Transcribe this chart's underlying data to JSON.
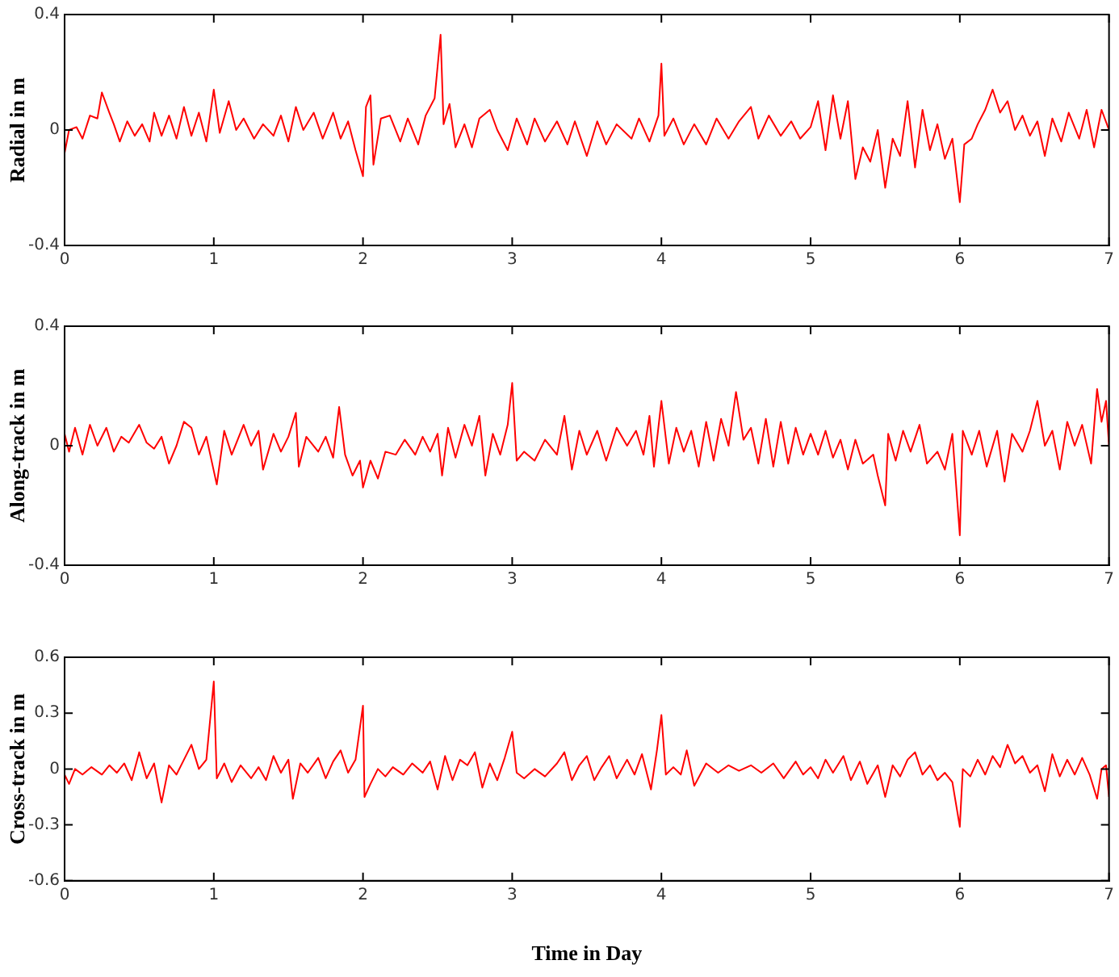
{
  "chart_data": [
    {
      "type": "line",
      "ylabel": "Radial in m",
      "xlim": [
        0,
        7
      ],
      "xticks": [
        0,
        1,
        2,
        3,
        4,
        5,
        6,
        7
      ],
      "ylim": [
        -0.4,
        0.4
      ],
      "yticks": [
        -0.4,
        0,
        0.4
      ],
      "marker": "none",
      "x": [
        0,
        0.03,
        0.08,
        0.12,
        0.17,
        0.22,
        0.25,
        0.3,
        0.33,
        0.37,
        0.42,
        0.47,
        0.52,
        0.57,
        0.6,
        0.65,
        0.7,
        0.75,
        0.8,
        0.85,
        0.9,
        0.95,
        1.0,
        1.04,
        1.1,
        1.15,
        1.2,
        1.27,
        1.33,
        1.4,
        1.45,
        1.5,
        1.55,
        1.6,
        1.67,
        1.73,
        1.8,
        1.85,
        1.9,
        1.95,
        2.0,
        2.02,
        2.05,
        2.07,
        2.12,
        2.18,
        2.25,
        2.3,
        2.37,
        2.42,
        2.48,
        2.52,
        2.54,
        2.58,
        2.62,
        2.68,
        2.73,
        2.78,
        2.85,
        2.9,
        2.97,
        3.03,
        3.1,
        3.15,
        3.22,
        3.3,
        3.37,
        3.42,
        3.5,
        3.57,
        3.63,
        3.7,
        3.8,
        3.85,
        3.92,
        3.98,
        4.0,
        4.02,
        4.08,
        4.15,
        4.22,
        4.3,
        4.37,
        4.45,
        4.52,
        4.6,
        4.65,
        4.72,
        4.8,
        4.87,
        4.93,
        5.0,
        5.05,
        5.1,
        5.15,
        5.2,
        5.25,
        5.3,
        5.35,
        5.4,
        5.45,
        5.5,
        5.55,
        5.6,
        5.65,
        5.7,
        5.75,
        5.8,
        5.85,
        5.9,
        5.95,
        6.0,
        6.03,
        6.08,
        6.12,
        6.17,
        6.22,
        6.27,
        6.32,
        6.37,
        6.42,
        6.47,
        6.52,
        6.57,
        6.62,
        6.68,
        6.73,
        6.8,
        6.85,
        6.9,
        6.95,
        7.0
      ],
      "series": [
        {
          "color": "#ff0000",
          "values": [
            -0.08,
            0.0,
            0.01,
            -0.03,
            0.05,
            0.04,
            0.13,
            0.06,
            0.02,
            -0.04,
            0.03,
            -0.02,
            0.02,
            -0.04,
            0.06,
            -0.02,
            0.05,
            -0.03,
            0.08,
            -0.02,
            0.06,
            -0.04,
            0.14,
            -0.01,
            0.1,
            0.0,
            0.04,
            -0.03,
            0.02,
            -0.02,
            0.05,
            -0.04,
            0.08,
            0.0,
            0.06,
            -0.03,
            0.06,
            -0.03,
            0.03,
            -0.07,
            -0.16,
            0.08,
            0.12,
            -0.12,
            0.04,
            0.05,
            -0.04,
            0.04,
            -0.05,
            0.05,
            0.11,
            0.33,
            0.02,
            0.09,
            -0.06,
            0.02,
            -0.06,
            0.04,
            0.07,
            0.0,
            -0.07,
            0.04,
            -0.05,
            0.04,
            -0.04,
            0.03,
            -0.05,
            0.03,
            -0.09,
            0.03,
            -0.05,
            0.02,
            -0.03,
            0.04,
            -0.04,
            0.05,
            0.23,
            -0.02,
            0.04,
            -0.05,
            0.02,
            -0.05,
            0.04,
            -0.03,
            0.03,
            0.08,
            -0.03,
            0.05,
            -0.02,
            0.03,
            -0.03,
            0.01,
            0.1,
            -0.07,
            0.12,
            -0.03,
            0.1,
            -0.17,
            -0.06,
            -0.11,
            0.0,
            -0.2,
            -0.03,
            -0.09,
            0.1,
            -0.13,
            0.07,
            -0.07,
            0.02,
            -0.1,
            -0.03,
            -0.25,
            -0.05,
            -0.03,
            0.02,
            0.07,
            0.14,
            0.06,
            0.1,
            0.0,
            0.05,
            -0.02,
            0.03,
            -0.09,
            0.04,
            -0.04,
            0.06,
            -0.03,
            0.07,
            -0.06,
            0.07,
            0.0
          ]
        }
      ]
    },
    {
      "type": "line",
      "ylabel": "Along-track in m",
      "xlim": [
        0,
        7
      ],
      "xticks": [
        0,
        1,
        2,
        3,
        4,
        5,
        6,
        7
      ],
      "ylim": [
        -0.4,
        0.4
      ],
      "yticks": [
        -0.4,
        0,
        0.4
      ],
      "marker": "none",
      "x": [
        0,
        0.03,
        0.07,
        0.12,
        0.17,
        0.22,
        0.28,
        0.33,
        0.38,
        0.43,
        0.5,
        0.55,
        0.6,
        0.65,
        0.7,
        0.75,
        0.8,
        0.85,
        0.9,
        0.95,
        1.02,
        1.07,
        1.12,
        1.2,
        1.25,
        1.3,
        1.33,
        1.4,
        1.45,
        1.5,
        1.55,
        1.57,
        1.62,
        1.7,
        1.75,
        1.8,
        1.84,
        1.88,
        1.93,
        1.98,
        2.0,
        2.05,
        2.1,
        2.15,
        2.22,
        2.28,
        2.35,
        2.4,
        2.45,
        2.5,
        2.53,
        2.57,
        2.62,
        2.68,
        2.73,
        2.78,
        2.82,
        2.87,
        2.92,
        2.97,
        3.0,
        3.03,
        3.08,
        3.15,
        3.22,
        3.3,
        3.35,
        3.4,
        3.45,
        3.5,
        3.57,
        3.63,
        3.7,
        3.77,
        3.83,
        3.88,
        3.92,
        3.95,
        4.0,
        4.05,
        4.1,
        4.15,
        4.2,
        4.25,
        4.3,
        4.35,
        4.4,
        4.45,
        4.5,
        4.55,
        4.6,
        4.65,
        4.7,
        4.75,
        4.8,
        4.85,
        4.9,
        4.95,
        5.0,
        5.05,
        5.1,
        5.15,
        5.2,
        5.25,
        5.3,
        5.35,
        5.42,
        5.45,
        5.5,
        5.52,
        5.57,
        5.62,
        5.67,
        5.73,
        5.78,
        5.85,
        5.9,
        5.95,
        6.0,
        6.02,
        6.08,
        6.13,
        6.18,
        6.25,
        6.3,
        6.35,
        6.42,
        6.47,
        6.52,
        6.57,
        6.62,
        6.67,
        6.72,
        6.77,
        6.82,
        6.88,
        6.92,
        6.95,
        6.98,
        7.0
      ],
      "series": [
        {
          "color": "#ff0000",
          "values": [
            0.04,
            -0.02,
            0.06,
            -0.03,
            0.07,
            0.0,
            0.06,
            -0.02,
            0.03,
            0.01,
            0.07,
            0.01,
            -0.01,
            0.03,
            -0.06,
            0.0,
            0.08,
            0.06,
            -0.03,
            0.03,
            -0.13,
            0.05,
            -0.03,
            0.07,
            0.0,
            0.05,
            -0.08,
            0.04,
            -0.02,
            0.03,
            0.11,
            -0.07,
            0.03,
            -0.02,
            0.03,
            -0.04,
            0.13,
            -0.03,
            -0.1,
            -0.05,
            -0.14,
            -0.05,
            -0.11,
            -0.02,
            -0.03,
            0.02,
            -0.03,
            0.03,
            -0.02,
            0.04,
            -0.1,
            0.06,
            -0.04,
            0.07,
            0.0,
            0.1,
            -0.1,
            0.04,
            -0.03,
            0.07,
            0.21,
            -0.05,
            -0.02,
            -0.05,
            0.02,
            -0.03,
            0.1,
            -0.08,
            0.05,
            -0.03,
            0.05,
            -0.05,
            0.06,
            0.0,
            0.05,
            -0.03,
            0.1,
            -0.07,
            0.15,
            -0.06,
            0.06,
            -0.02,
            0.05,
            -0.07,
            0.08,
            -0.05,
            0.09,
            0.0,
            0.18,
            0.02,
            0.06,
            -0.06,
            0.09,
            -0.07,
            0.08,
            -0.06,
            0.06,
            -0.03,
            0.04,
            -0.03,
            0.05,
            -0.04,
            0.02,
            -0.08,
            0.02,
            -0.06,
            -0.03,
            -0.1,
            -0.2,
            0.04,
            -0.05,
            0.05,
            -0.02,
            0.07,
            -0.06,
            -0.02,
            -0.08,
            0.04,
            -0.3,
            0.05,
            -0.03,
            0.05,
            -0.07,
            0.05,
            -0.12,
            0.04,
            -0.02,
            0.05,
            0.15,
            0.0,
            0.05,
            -0.08,
            0.08,
            0.0,
            0.07,
            -0.06,
            0.19,
            0.08,
            0.15,
            0.0
          ]
        }
      ]
    },
    {
      "type": "line",
      "ylabel": "Cross-track in m",
      "xlabel": "Time in Day",
      "xlim": [
        0,
        7
      ],
      "xticks": [
        0,
        1,
        2,
        3,
        4,
        5,
        6,
        7
      ],
      "ylim": [
        -0.6,
        0.6
      ],
      "yticks": [
        -0.6,
        -0.3,
        0,
        0.3,
        0.6
      ],
      "marker": "none",
      "x": [
        0,
        0.03,
        0.07,
        0.12,
        0.18,
        0.25,
        0.3,
        0.35,
        0.4,
        0.45,
        0.5,
        0.55,
        0.6,
        0.65,
        0.7,
        0.75,
        0.8,
        0.85,
        0.9,
        0.95,
        1.0,
        1.02,
        1.07,
        1.12,
        1.18,
        1.25,
        1.3,
        1.35,
        1.4,
        1.45,
        1.5,
        1.53,
        1.58,
        1.63,
        1.7,
        1.75,
        1.8,
        1.85,
        1.9,
        1.95,
        2.0,
        2.01,
        2.05,
        2.1,
        2.15,
        2.2,
        2.27,
        2.33,
        2.4,
        2.45,
        2.5,
        2.55,
        2.6,
        2.65,
        2.7,
        2.75,
        2.8,
        2.85,
        2.9,
        2.95,
        3.0,
        3.03,
        3.08,
        3.15,
        3.22,
        3.3,
        3.35,
        3.4,
        3.45,
        3.5,
        3.55,
        3.6,
        3.65,
        3.7,
        3.77,
        3.82,
        3.87,
        3.93,
        3.97,
        4.0,
        4.03,
        4.08,
        4.13,
        4.17,
        4.22,
        4.3,
        4.38,
        4.45,
        4.52,
        4.6,
        4.67,
        4.75,
        4.82,
        4.9,
        4.95,
        5.0,
        5.05,
        5.1,
        5.15,
        5.22,
        5.27,
        5.33,
        5.38,
        5.45,
        5.5,
        5.55,
        5.6,
        5.65,
        5.7,
        5.75,
        5.8,
        5.85,
        5.9,
        5.95,
        6.0,
        6.02,
        6.07,
        6.12,
        6.17,
        6.22,
        6.27,
        6.32,
        6.37,
        6.42,
        6.47,
        6.52,
        6.57,
        6.62,
        6.67,
        6.72,
        6.77,
        6.82,
        6.87,
        6.92,
        6.95,
        6.98,
        7.0
      ],
      "series": [
        {
          "color": "#ff0000",
          "values": [
            -0.03,
            -0.08,
            0.0,
            -0.03,
            0.01,
            -0.03,
            0.02,
            -0.02,
            0.03,
            -0.06,
            0.09,
            -0.05,
            0.03,
            -0.18,
            0.02,
            -0.03,
            0.05,
            0.13,
            0.0,
            0.05,
            0.47,
            -0.05,
            0.03,
            -0.07,
            0.02,
            -0.05,
            0.01,
            -0.06,
            0.07,
            -0.02,
            0.05,
            -0.16,
            0.03,
            -0.02,
            0.06,
            -0.05,
            0.04,
            0.1,
            -0.02,
            0.05,
            0.34,
            -0.15,
            -0.08,
            0.0,
            -0.04,
            0.01,
            -0.03,
            0.03,
            -0.02,
            0.04,
            -0.11,
            0.07,
            -0.06,
            0.05,
            0.02,
            0.09,
            -0.1,
            0.03,
            -0.06,
            0.06,
            0.2,
            -0.02,
            -0.05,
            0.0,
            -0.04,
            0.03,
            0.09,
            -0.06,
            0.02,
            0.07,
            -0.06,
            0.01,
            0.07,
            -0.05,
            0.05,
            -0.03,
            0.08,
            -0.11,
            0.1,
            0.29,
            -0.03,
            0.01,
            -0.03,
            0.1,
            -0.09,
            0.03,
            -0.02,
            0.02,
            -0.01,
            0.02,
            -0.02,
            0.03,
            -0.05,
            0.04,
            -0.03,
            0.01,
            -0.05,
            0.05,
            -0.02,
            0.07,
            -0.06,
            0.04,
            -0.08,
            0.02,
            -0.15,
            0.02,
            -0.04,
            0.05,
            0.09,
            -0.03,
            0.02,
            -0.06,
            -0.02,
            -0.07,
            -0.31,
            0.0,
            -0.04,
            0.05,
            -0.03,
            0.07,
            0.01,
            0.13,
            0.03,
            0.07,
            -0.02,
            0.02,
            -0.12,
            0.08,
            -0.04,
            0.05,
            -0.03,
            0.06,
            -0.03,
            -0.16,
            0.0,
            0.02,
            -0.15
          ]
        }
      ]
    }
  ]
}
